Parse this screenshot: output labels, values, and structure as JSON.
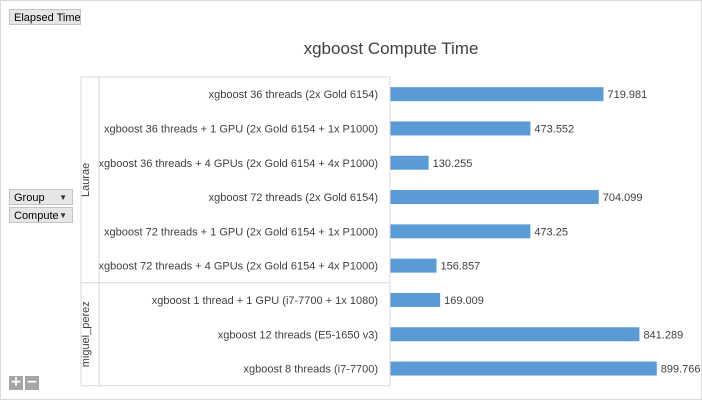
{
  "filter_buttons": {
    "elapsed_time": "Elapsed Time",
    "group": "Group",
    "compute": "Compute"
  },
  "zoom": {
    "expand": "+",
    "collapse": "−"
  },
  "colors": {
    "bar": "#5b9bd5",
    "axis": "#d9d9d9",
    "text": "#404040"
  },
  "chart_data": {
    "type": "bar",
    "orientation": "horizontal",
    "title": "xgboost Compute Time",
    "xlabel": "",
    "ylabel": "",
    "xlim": [
      0,
      900
    ],
    "grid": false,
    "groups": [
      {
        "name": "Laurae",
        "categories": [
          "xgboost 36 threads (2x Gold 6154)",
          "xgboost 36 threads + 1 GPU (2x Gold 6154 + 1x P1000)",
          "xgboost 36 threads + 4 GPUs (2x Gold 6154 + 4x P1000)",
          "xgboost 72 threads (2x Gold 6154)",
          "xgboost 72 threads + 1 GPU (2x Gold 6154 + 1x P1000)",
          "xgboost 72 threads + 4 GPUs (2x Gold 6154 + 4x P1000)"
        ],
        "values": [
          719.981,
          473.552,
          130.255,
          704.099,
          473.25,
          156.857
        ]
      },
      {
        "name": "miguel_perez",
        "categories": [
          "xgboost 1 thread + 1 GPU (i7-7700 + 1x 1080)",
          "xgboost 12 threads (E5-1650 v3)",
          "xgboost 8 threads (i7-7700)"
        ],
        "values": [
          169.009,
          841.289,
          899.766
        ]
      }
    ]
  }
}
